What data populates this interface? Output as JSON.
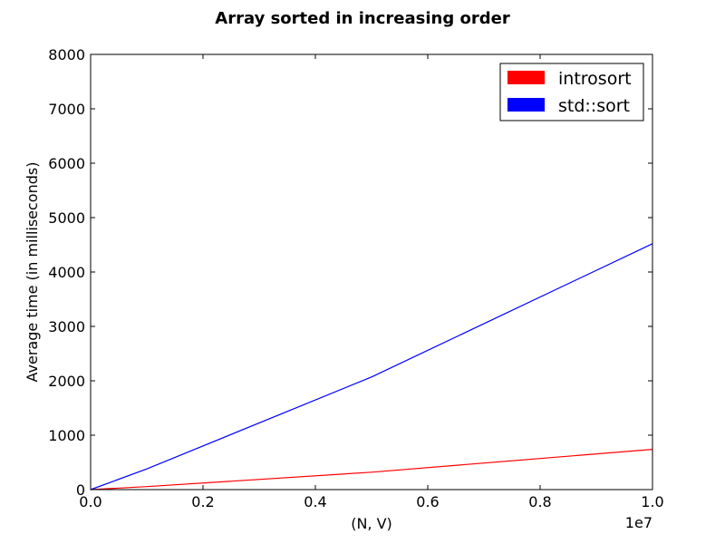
{
  "chart_data": {
    "type": "line",
    "title": "Array sorted in increasing order",
    "xlabel": "(N, V)",
    "ylabel": "Average time (in milliseconds)",
    "x_offset_label": "1e7",
    "xlim": [
      0,
      1.0
    ],
    "ylim": [
      0,
      8000
    ],
    "x_ticks": [
      0.0,
      0.2,
      0.4,
      0.6,
      0.8,
      1.0
    ],
    "x_tick_labels": [
      "0.0",
      "0.2",
      "0.4",
      "0.6",
      "0.8",
      "1.0"
    ],
    "y_ticks": [
      0,
      1000,
      2000,
      3000,
      4000,
      5000,
      6000,
      7000,
      8000
    ],
    "y_tick_labels": [
      "0",
      "1000",
      "2000",
      "3000",
      "4000",
      "5000",
      "6000",
      "7000",
      "8000"
    ],
    "grid": false,
    "legend_position": "top-right",
    "x": [
      0.0,
      0.1,
      0.5,
      1.0
    ],
    "series": [
      {
        "name": "introsort",
        "color": "#ff0000",
        "values": [
          0,
          55,
          320,
          740
        ]
      },
      {
        "name": "std::sort",
        "color": "#0000ff",
        "values": [
          0,
          380,
          2070,
          4520
        ]
      }
    ]
  }
}
